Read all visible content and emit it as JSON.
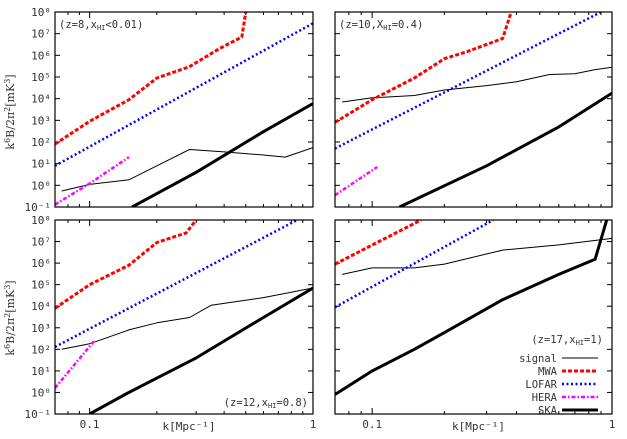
{
  "figure": {
    "ylabel": "k^6 B/2π^2 [mK^3]",
    "xlabel": "k[Mpc^-1]",
    "x_tick_labels": [
      "0.1",
      "1"
    ],
    "y_tick_labels": [
      "10^-1",
      "10^0",
      "10^1",
      "10^2",
      "10^3",
      "10^4",
      "10^5",
      "10^6",
      "10^7",
      "10^8"
    ]
  },
  "legend": {
    "title": "(z=17, x_HI=1)",
    "entries": [
      {
        "label": "signal",
        "color": "#000000",
        "style": "solid-thin"
      },
      {
        "label": "MWA",
        "color": "#ff0000",
        "style": "dashed"
      },
      {
        "label": "LOFAR",
        "color": "#0000ff",
        "style": "dotted"
      },
      {
        "label": "HERA",
        "color": "#ff00ff",
        "style": "dash-dot"
      },
      {
        "label": "SKA",
        "color": "#000000",
        "style": "solid-thick"
      }
    ]
  },
  "chart_data": [
    {
      "type": "line",
      "panel": "top-left",
      "annotation": "(z=8, x_HI<0.01)",
      "xlabel": "",
      "ylabel": "k^6 B/2π^2 [mK^3]",
      "xscale": "log",
      "yscale": "log",
      "xlim": [
        0.07,
        1
      ],
      "ylim": [
        0.1,
        100000000.0
      ],
      "series": [
        {
          "name": "signal",
          "x": [
            0.075,
            0.1,
            0.15,
            0.2,
            0.28,
            0.4,
            0.6,
            0.75,
            1.0
          ],
          "y": [
            0.55,
            1.1,
            1.8,
            8,
            45,
            35,
            25,
            20,
            55
          ]
        },
        {
          "name": "MWA",
          "x": [
            0.07,
            0.1,
            0.15,
            0.2,
            0.28,
            0.38,
            0.48,
            0.5
          ],
          "y": [
            80,
            900,
            9000,
            90000,
            300000,
            2000000,
            7000000,
            100000000.0
          ]
        },
        {
          "name": "LOFAR",
          "x": [
            0.07,
            1.0
          ],
          "y": [
            8,
            30000000.0
          ]
        },
        {
          "name": "HERA",
          "x": [
            0.07,
            0.1,
            0.15
          ],
          "y": [
            0.13,
            1.2,
            20
          ]
        },
        {
          "name": "SKA",
          "x": [
            0.155,
            0.3,
            0.6,
            1.0
          ],
          "y": [
            0.1,
            4,
            300,
            6000
          ]
        }
      ]
    },
    {
      "type": "line",
      "panel": "top-right",
      "annotation": "(z=10, X_HI=0.4)",
      "xlabel": "",
      "ylabel": "",
      "xscale": "log",
      "yscale": "log",
      "xlim": [
        0.07,
        1
      ],
      "ylim": [
        0.1,
        100000000.0
      ],
      "series": [
        {
          "name": "signal",
          "x": [
            0.075,
            0.1,
            0.15,
            0.2,
            0.3,
            0.4,
            0.55,
            0.7,
            0.85,
            1.0
          ],
          "y": [
            7000,
            11000,
            14000,
            25000,
            40000,
            60000,
            130000,
            140000,
            220000,
            280000
          ]
        },
        {
          "name": "MWA",
          "x": [
            0.07,
            0.1,
            0.15,
            0.2,
            0.25,
            0.35,
            0.38
          ],
          "y": [
            800,
            9000,
            90000,
            700000,
            1500000,
            6000000,
            100000000.0
          ]
        },
        {
          "name": "LOFAR",
          "x": [
            0.07,
            0.9
          ],
          "y": [
            50,
            100000000.0
          ]
        },
        {
          "name": "HERA",
          "x": [
            0.07,
            0.105
          ],
          "y": [
            0.35,
            7
          ]
        },
        {
          "name": "SKA",
          "x": [
            0.13,
            0.3,
            0.6,
            1.0
          ],
          "y": [
            0.1,
            8,
            500,
            18000
          ]
        }
      ]
    },
    {
      "type": "line",
      "panel": "bottom-left",
      "annotation": "(z=12, x_HI=0.8)",
      "xlabel": "k[Mpc^-1]",
      "ylabel": "k^6 B/2π^2 [mK^3]",
      "xscale": "log",
      "yscale": "log",
      "xlim": [
        0.07,
        1
      ],
      "ylim": [
        0.1,
        100000000.0
      ],
      "series": [
        {
          "name": "signal",
          "x": [
            0.075,
            0.1,
            0.15,
            0.2,
            0.28,
            0.35,
            0.6,
            1.0
          ],
          "y": [
            100,
            180,
            800,
            1700,
            3000,
            11000,
            25000,
            70000
          ]
        },
        {
          "name": "MWA",
          "x": [
            0.07,
            0.1,
            0.15,
            0.2,
            0.27,
            0.3
          ],
          "y": [
            8000,
            100000,
            800000,
            9000000,
            25000000,
            100000000.0
          ]
        },
        {
          "name": "LOFAR",
          "x": [
            0.07,
            0.85
          ],
          "y": [
            130,
            100000000.0
          ]
        },
        {
          "name": "HERA",
          "x": [
            0.07,
            0.105
          ],
          "y": [
            1.6,
            250
          ]
        },
        {
          "name": "SKA",
          "x": [
            0.1,
            0.15,
            0.3,
            0.6,
            1.0
          ],
          "y": [
            0.1,
            1,
            40,
            3000,
            70000
          ]
        }
      ]
    },
    {
      "type": "line",
      "panel": "bottom-right",
      "annotation": "(z=17, x_HI=1)",
      "xlabel": "k[Mpc^-1]",
      "ylabel": "",
      "xscale": "log",
      "yscale": "log",
      "xlim": [
        0.07,
        1
      ],
      "ylim": [
        0.1,
        100000000.0
      ],
      "series": [
        {
          "name": "signal",
          "x": [
            0.075,
            0.1,
            0.15,
            0.2,
            0.35,
            0.6,
            1.0
          ],
          "y": [
            300000,
            600000,
            600000,
            900000,
            4000000,
            7000000,
            14000000
          ]
        },
        {
          "name": "MWA",
          "x": [
            0.07,
            0.16
          ],
          "y": [
            900000,
            100000000.0
          ]
        },
        {
          "name": "LOFAR",
          "x": [
            0.07,
            0.32
          ],
          "y": [
            9000,
            100000000.0
          ]
        },
        {
          "name": "HERA",
          "x": [],
          "y": []
        },
        {
          "name": "SKA",
          "x": [
            0.07,
            0.1,
            0.15,
            0.2,
            0.35,
            0.6,
            0.85,
            0.95
          ],
          "y": [
            0.8,
            10,
            100,
            600,
            20000,
            300000,
            1500000,
            100000000.0
          ]
        }
      ]
    }
  ]
}
